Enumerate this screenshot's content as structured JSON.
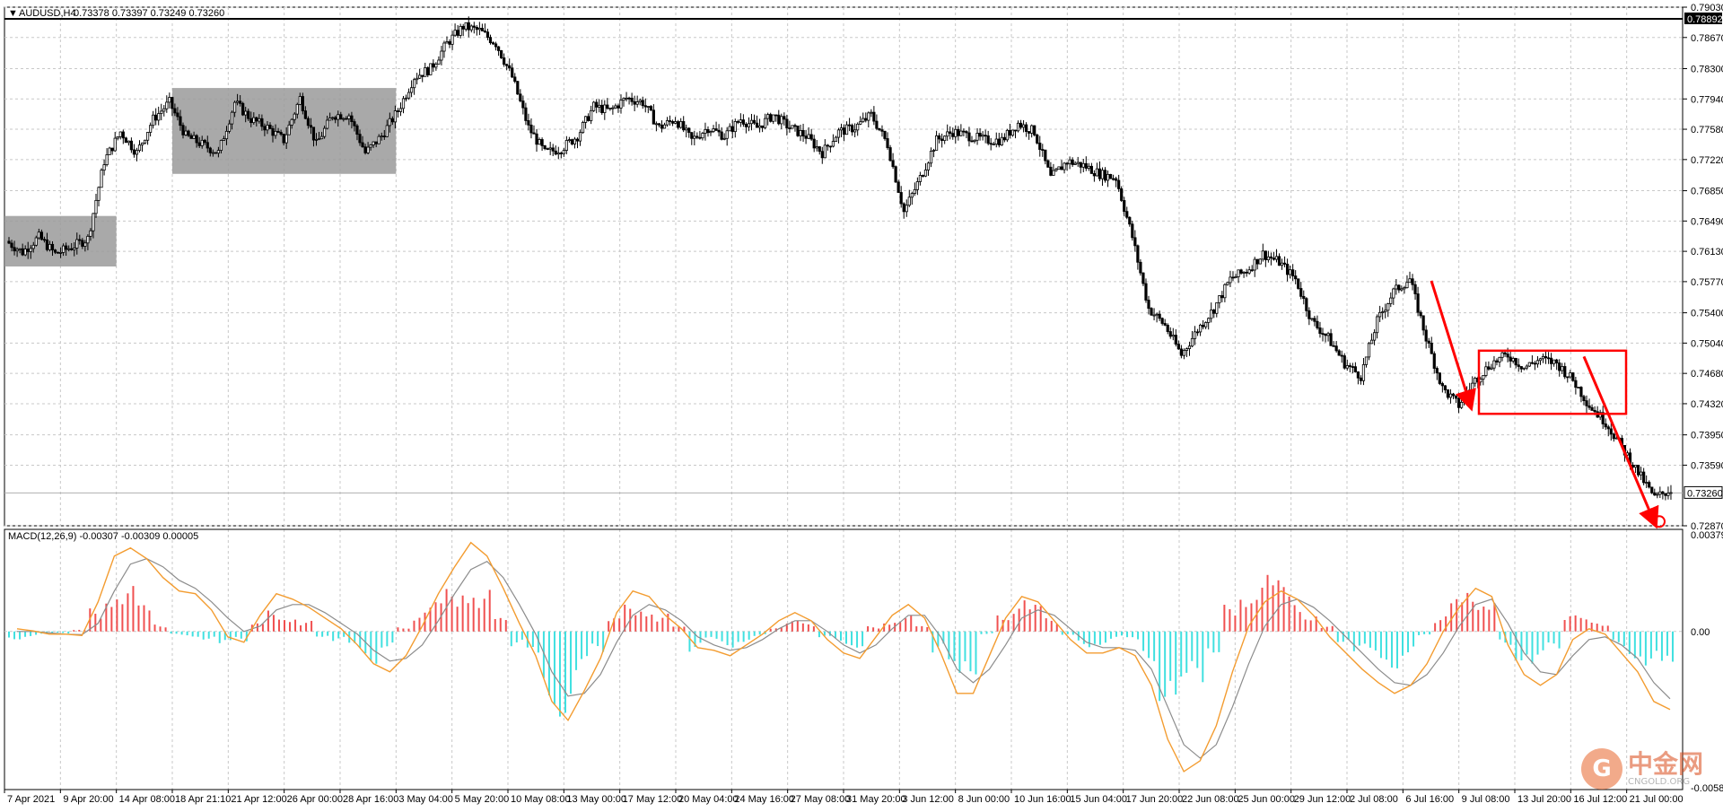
{
  "header": {
    "symbol_timeframe": "AUDUSD,H4",
    "ohlc": "0.73378 0.73397 0.73249 0.73260",
    "dropdown_icon": "triangle-down-icon"
  },
  "macd_header": "MACD(12,26,9) -0.00307 -0.00309 0.00005",
  "price_axis_labels": [
    "0.79030",
    "0.78670",
    "0.78300",
    "0.77940",
    "0.77580",
    "0.77220",
    "0.76850",
    "0.76490",
    "0.76130",
    "0.75770",
    "0.75400",
    "0.75040",
    "0.74680",
    "0.74320",
    "0.73950",
    "0.73590",
    "0.72870"
  ],
  "macd_axis_labels": [
    "0.00379",
    "0.00",
    "-0.00587"
  ],
  "high_line_label": "0.78892",
  "current_price_label": "0.73260",
  "time_axis_labels": [
    "7 Apr 2021",
    "9 Apr 20:00",
    "14 Apr 08:00",
    "18 Apr 21:10",
    "21 Apr 12:00",
    "26 Apr 00:00",
    "28 Apr 16:00",
    "3 May 04:00",
    "5 May 20:00",
    "10 May 08:00",
    "13 May 00:00",
    "17 May 12:00",
    "20 May 04:00",
    "24 May 16:00",
    "27 May 08:00",
    "31 May 20:00",
    "3 Jun 12:00",
    "8 Jun 00:00",
    "10 Jun 16:00",
    "15 Jun 04:00",
    "17 Jun 20:00",
    "22 Jun 08:00",
    "25 Jun 00:00",
    "29 Jun 12:00",
    "2 Jul 08:00",
    "6 Jul 16:00",
    "9 Jul 08:00",
    "13 Jul 20:00",
    "16 Jul 12:00",
    "21 Jul 00:00"
  ],
  "watermark": {
    "logo": "G",
    "text": "中金网",
    "sub": "CNGOLD.ORG"
  },
  "colors": {
    "candle": "#000000",
    "grid": "#c8c8c8",
    "gray_zone": "#9a9a9a",
    "red_annot": "#ff0000",
    "macd_pos": "#f05050",
    "macd_neg": "#40e0e0",
    "macd_line": "#f39c30",
    "signal_line": "#8c8c8c"
  },
  "chart_data": {
    "type": "candlestick",
    "title": "AUDUSD,H4",
    "x_range": [
      "7 Apr 2021",
      "21 Jul 2021"
    ],
    "ylim": [
      0.7287,
      0.7903
    ],
    "annotations": {
      "high_line": 0.78892,
      "current_price": 0.7326,
      "gray_zones": [
        {
          "from": "7 Apr 2021",
          "to": "14 Apr 08:00",
          "low": 0.7595,
          "high": 0.7655
        },
        {
          "from": "18 Apr 21:10",
          "to": "3 May 04:00",
          "low": 0.7705,
          "high": 0.7807
        }
      ],
      "red_box": {
        "from": "6 Jul 16:00",
        "to": "16 Jul 12:00",
        "low": 0.742,
        "high": 0.7495
      },
      "red_arrows": [
        {
          "from_price": 0.7578,
          "to_price": 0.7435
        },
        {
          "from_price": 0.7488,
          "to_price": 0.7295
        }
      ],
      "low_marker": 0.7292
    },
    "price_path": [
      0.7625,
      0.7612,
      0.763,
      0.761,
      0.7618,
      0.7628,
      0.772,
      0.7755,
      0.773,
      0.777,
      0.779,
      0.775,
      0.774,
      0.773,
      0.779,
      0.777,
      0.776,
      0.7745,
      0.7795,
      0.774,
      0.7775,
      0.7775,
      0.773,
      0.775,
      0.778,
      0.782,
      0.783,
      0.786,
      0.788,
      0.7875,
      0.786,
      0.782,
      0.776,
      0.773,
      0.7735,
      0.775,
      0.7785,
      0.778,
      0.7795,
      0.779,
      0.776,
      0.777,
      0.7745,
      0.776,
      0.775,
      0.777,
      0.776,
      0.7775,
      0.776,
      0.775,
      0.773,
      0.7755,
      0.776,
      0.7775,
      0.774,
      0.766,
      0.77,
      0.7745,
      0.7755,
      0.775,
      0.7745,
      0.7745,
      0.7765,
      0.7755,
      0.77,
      0.772,
      0.7715,
      0.7705,
      0.77,
      0.763,
      0.7545,
      0.7525,
      0.749,
      0.752,
      0.7545,
      0.758,
      0.759,
      0.761,
      0.76,
      0.758,
      0.753,
      0.751,
      0.748,
      0.7465,
      0.753,
      0.7565,
      0.758,
      0.751,
      0.745,
      0.743,
      0.746,
      0.748,
      0.749,
      0.7475,
      0.7485,
      0.748,
      0.746,
      0.743,
      0.741,
      0.738,
      0.735,
      0.732,
      0.733
    ],
    "macd_hist": [
      -0.0003,
      -0.0002,
      -0.00012,
      -8e-05,
      6e-05,
      0.0009,
      0.0018,
      0.0017,
      0.001,
      0.0003,
      -0.00015,
      -0.0002,
      -0.0003,
      -0.0006,
      -0.0004,
      0.0003,
      0.0008,
      0.0007,
      0.0004,
      -0.0002,
      -0.0004,
      -0.0008,
      -0.0012,
      -0.0006,
      0.0002,
      0.0008,
      0.0011,
      0.0016,
      0.0021,
      0.0016,
      0.0005,
      -0.0006,
      -0.0011,
      -0.0027,
      -0.0032,
      -0.0018,
      -0.0009,
      0.0005,
      0.001,
      0.0011,
      0.0007,
      0.0002,
      -0.0008,
      -0.0004,
      -0.0006,
      -0.0004,
      -0.0002,
      0.0002,
      0.0004,
      0.0003,
      -0.0003,
      -0.0005,
      -0.0006,
      0.0002,
      0.0005,
      0.0006,
      0.0002,
      -0.0009,
      -0.002,
      -0.0016,
      -0.0001,
      0.0008,
      0.0013,
      0.001,
      0.0005,
      -0.0002,
      -0.0006,
      -0.0005,
      -0.0003,
      -0.0004,
      -0.0011,
      -0.0026,
      -0.003,
      -0.0022,
      -0.0008,
      0.001,
      0.0018,
      0.0022,
      0.0019,
      0.0014,
      0.0008,
      0.0002,
      -0.0004,
      -0.0009,
      -0.0012,
      -0.0014,
      -0.0009,
      -0.0002,
      0.0006,
      0.0012,
      0.0015,
      0.0016,
      -0.0005,
      -0.0011,
      -0.0014,
      -0.0008,
      0.0006,
      0.0005,
      0.0004,
      -0.0006,
      -0.001,
      -0.0013,
      -0.0018
    ],
    "macd_line": [
      0.0001,
      2e-05,
      -0.0001,
      -0.0001,
      -0.00015,
      0.0011,
      0.0028,
      0.0031,
      0.0027,
      0.002,
      0.0015,
      0.0014,
      0.0008,
      -0.0002,
      -0.0004,
      0.0006,
      0.0014,
      0.0012,
      0.0009,
      0.0005,
      0.0001,
      -0.0005,
      -0.0012,
      -0.0015,
      -0.0009,
      0.0002,
      0.0014,
      0.0024,
      0.0033,
      0.0028,
      0.0016,
      0.0003,
      -0.0009,
      -0.0026,
      -0.0033,
      -0.0022,
      -0.001,
      0.0007,
      0.0015,
      0.0013,
      0.0006,
      0.0001,
      -0.0006,
      -0.0007,
      -0.0009,
      -0.0005,
      -0.0001,
      0.0004,
      0.0007,
      0.0004,
      -0.0003,
      -0.0008,
      -0.001,
      -0.0002,
      0.0006,
      0.001,
      0.0005,
      -0.0008,
      -0.0023,
      -0.0023,
      -0.0009,
      0.0005,
      0.0013,
      0.0011,
      0.0004,
      -0.0003,
      -0.0008,
      -0.0008,
      -0.0006,
      -0.0009,
      -0.002,
      -0.004,
      -0.0052,
      -0.0048,
      -0.0035,
      -0.0015,
      0.0002,
      0.0011,
      0.0015,
      0.0012,
      0.0006,
      -0.0002,
      -0.0008,
      -0.0014,
      -0.0019,
      -0.0023,
      -0.002,
      -0.0012,
      0.0,
      0.0009,
      0.0016,
      0.0013,
      -0.0005,
      -0.0016,
      -0.002,
      -0.0016,
      -0.0003,
      0.0001,
      -0.0001,
      -0.0008,
      -0.0015,
      -0.0026,
      -0.0029
    ],
    "signal_line": [
      0.0,
      0.0,
      -5e-05,
      -0.0001,
      -0.00012,
      0.0003,
      0.0015,
      0.0025,
      0.0027,
      0.0024,
      0.0019,
      0.0016,
      0.0011,
      0.0005,
      0.0,
      0.0002,
      0.0008,
      0.001,
      0.001,
      0.0007,
      0.0003,
      -0.0001,
      -0.0007,
      -0.0011,
      -0.001,
      -0.0005,
      0.0004,
      0.0014,
      0.0023,
      0.0026,
      0.002,
      0.001,
      -0.0001,
      -0.0015,
      -0.0024,
      -0.0023,
      -0.0016,
      -0.0004,
      0.0006,
      0.001,
      0.0008,
      0.0004,
      -0.0002,
      -0.0005,
      -0.0007,
      -0.0006,
      -0.0003,
      0.0001,
      0.0004,
      0.0004,
      0.0,
      -0.0005,
      -0.0008,
      -0.0005,
      0.0001,
      0.0006,
      0.0006,
      -0.0002,
      -0.0014,
      -0.0019,
      -0.0014,
      -0.0005,
      0.0005,
      0.0008,
      0.0006,
      0.0001,
      -0.0004,
      -0.0006,
      -0.0006,
      -0.0007,
      -0.0014,
      -0.0028,
      -0.0042,
      -0.0047,
      -0.0042,
      -0.0028,
      -0.0012,
      0.0002,
      0.001,
      0.0012,
      0.0009,
      0.0004,
      -0.0002,
      -0.0008,
      -0.0014,
      -0.0019,
      -0.002,
      -0.0016,
      -0.0008,
      0.0002,
      0.001,
      0.0012,
      0.0003,
      -0.0008,
      -0.0015,
      -0.0016,
      -0.0009,
      -0.0003,
      -0.0002,
      -0.0005,
      -0.001,
      -0.0019,
      -0.0025
    ]
  }
}
